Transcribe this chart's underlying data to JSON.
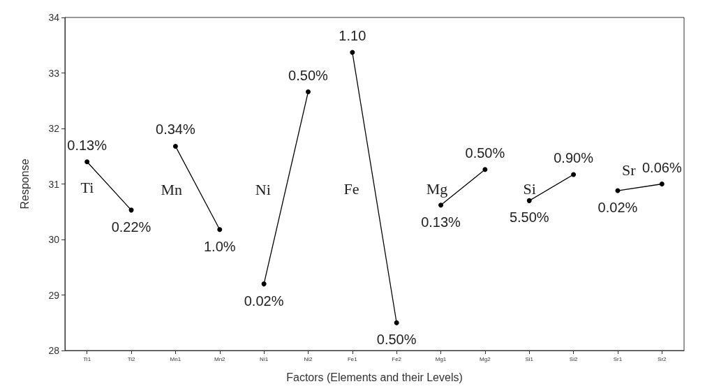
{
  "chart_data": {
    "type": "line",
    "xlabel": "Factors (Elements and their Levels)",
    "ylabel": "Response",
    "categories": [
      "Ti1",
      "Ti2",
      "Mn1",
      "Mn2",
      "Ni1",
      "Ni2",
      "Fe1",
      "Fe2",
      "Mg1",
      "Mg2",
      "Si1",
      "Si2",
      "Sr1",
      "Sr2"
    ],
    "series": [
      {
        "name": "Ti",
        "color": "#000000",
        "values": [
          31.4,
          30.53,
          null,
          null,
          null,
          null,
          null,
          null,
          null,
          null,
          null,
          null,
          null,
          null
        ]
      },
      {
        "name": "Mn",
        "color": "#000000",
        "values": [
          null,
          null,
          31.68,
          30.18,
          null,
          null,
          null,
          null,
          null,
          null,
          null,
          null,
          null,
          null
        ]
      },
      {
        "name": "Ni",
        "color": "#000000",
        "values": [
          null,
          null,
          null,
          null,
          29.2,
          32.66,
          null,
          null,
          null,
          null,
          null,
          null,
          null,
          null
        ]
      },
      {
        "name": "Fe",
        "color": "#000000",
        "values": [
          null,
          null,
          null,
          null,
          null,
          null,
          33.37,
          28.5,
          null,
          null,
          null,
          null,
          null,
          null
        ]
      },
      {
        "name": "Mg",
        "color": "#000000",
        "values": [
          null,
          null,
          null,
          null,
          null,
          null,
          null,
          null,
          30.62,
          31.26,
          null,
          null,
          null,
          null
        ]
      },
      {
        "name": "Si",
        "color": "#000000",
        "values": [
          null,
          null,
          null,
          null,
          null,
          null,
          null,
          null,
          null,
          null,
          30.7,
          31.17,
          null,
          null
        ]
      },
      {
        "name": "Sr",
        "color": "#000000",
        "values": [
          null,
          null,
          null,
          null,
          null,
          null,
          null,
          null,
          null,
          null,
          null,
          null,
          30.88,
          31.0
        ]
      }
    ],
    "annotations": [
      {
        "text": "0.13%",
        "x": "Ti1",
        "y": 31.4
      },
      {
        "text": "0.22%",
        "x": "Ti2",
        "y": 30.53
      },
      {
        "text": "0.34%",
        "x": "Mn1",
        "y": 31.68
      },
      {
        "text": "1.0%",
        "x": "Mn2",
        "y": 30.18
      },
      {
        "text": "0.02%",
        "x": "Ni1",
        "y": 29.2
      },
      {
        "text": "0.50%",
        "x": "Ni2",
        "y": 32.66
      },
      {
        "text": "1.10",
        "x": "Fe1",
        "y": 33.37
      },
      {
        "text": "0.50%",
        "x": "Fe2",
        "y": 28.5
      },
      {
        "text": "0.13%",
        "x": "Mg1",
        "y": 30.62
      },
      {
        "text": "0.50%",
        "x": "Mg2",
        "y": 31.26
      },
      {
        "text": "5.50%",
        "x": "Si1",
        "y": 30.7
      },
      {
        "text": "0.90%",
        "x": "Si2",
        "y": 31.17
      },
      {
        "text": "0.02%",
        "x": "Sr1",
        "y": 30.88
      },
      {
        "text": "0.06%",
        "x": "Sr2",
        "y": 31.0
      }
    ],
    "ylim": [
      28,
      34
    ],
    "yticks": [
      28,
      29,
      30,
      31,
      32,
      33,
      34
    ],
    "grid": false,
    "legend": false,
    "marker": "circle",
    "line_style": "solid"
  }
}
